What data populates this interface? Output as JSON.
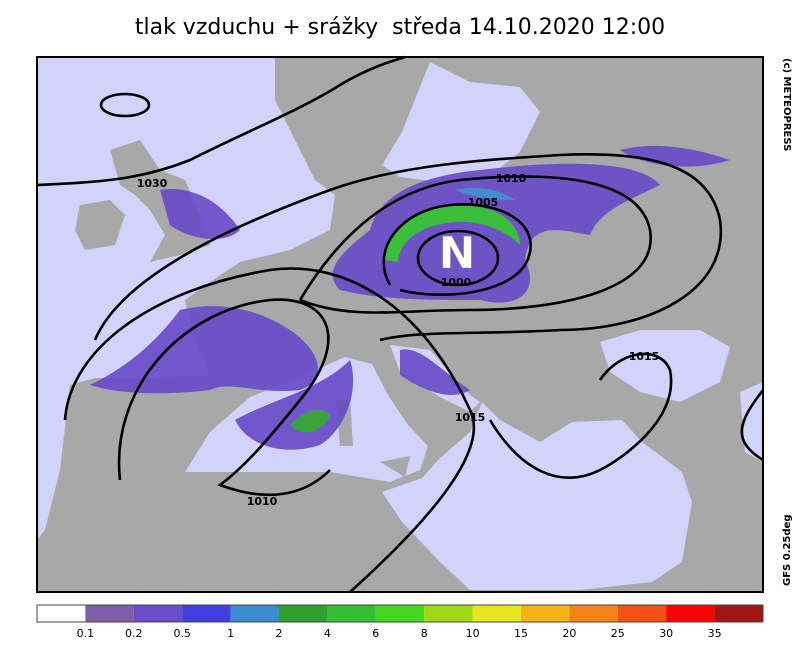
{
  "title": "tlak vzduchu + srážky  středa 14.10.2020 12:00",
  "copyright": "(c) METEOPRESS",
  "model": "GFS 0.25deg",
  "low_label": "N",
  "isobar_labels": [
    "1030",
    "1010",
    "1005",
    "1000",
    "1015",
    "1015",
    "1010"
  ],
  "legend": {
    "colors": [
      "#ffffff",
      "#7f5ea8",
      "#6a4cc8",
      "#3f3fe0",
      "#3b8bd0",
      "#2ea02e",
      "#32c032",
      "#46d81e",
      "#a0d814",
      "#e6e61e",
      "#f5b414",
      "#f58214",
      "#f55014",
      "#ff0000",
      "#a01414"
    ],
    "labels": [
      "0.1",
      "0.2",
      "0.5",
      "1",
      "2",
      "4",
      "6",
      "8",
      "10",
      "15",
      "20",
      "25",
      "30",
      "35"
    ]
  }
}
